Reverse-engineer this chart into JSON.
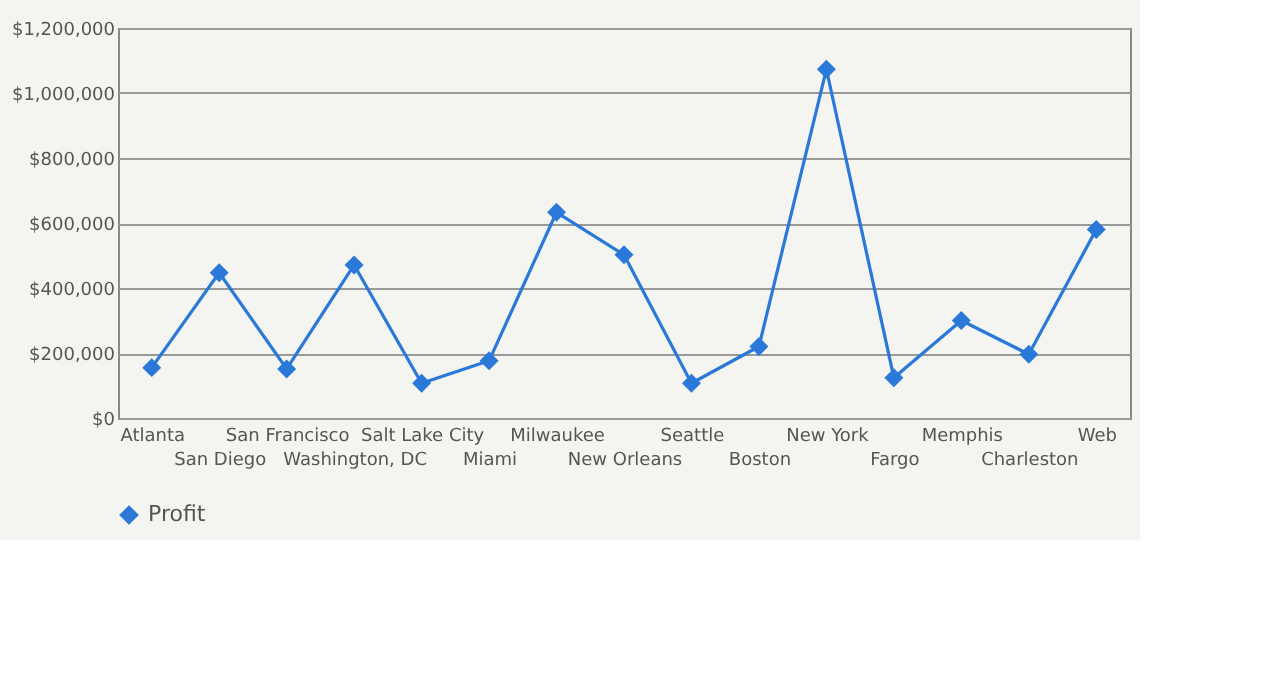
{
  "chart_data": {
    "type": "line",
    "categories": [
      "Atlanta",
      "San Diego",
      "San Francisco",
      "Washington, DC",
      "Salt Lake City",
      "Miami",
      "Milwaukee",
      "New Orleans",
      "Seattle",
      "Boston",
      "New York",
      "Fargo",
      "Memphis",
      "Charleston",
      "Web"
    ],
    "series": [
      {
        "name": "Profit",
        "color": "#2a78d8",
        "values": [
          155000,
          447000,
          151000,
          471000,
          107000,
          176000,
          633000,
          502000,
          107000,
          220000,
          1073000,
          124000,
          300000,
          196000,
          580000
        ]
      }
    ],
    "ylim": [
      0,
      1200000
    ],
    "yticks": [
      {
        "value": 0,
        "label": "$0"
      },
      {
        "value": 200000,
        "label": "$200,000"
      },
      {
        "value": 400000,
        "label": "$400,000"
      },
      {
        "value": 600000,
        "label": "$600,000"
      },
      {
        "value": 800000,
        "label": "$800,000"
      },
      {
        "value": 1000000,
        "label": "$1,000,000"
      },
      {
        "value": 1200000,
        "label": "$1,200,000"
      }
    ],
    "grid": "y",
    "legend": "bottom",
    "marker": "diamond",
    "line_style": "solid"
  }
}
